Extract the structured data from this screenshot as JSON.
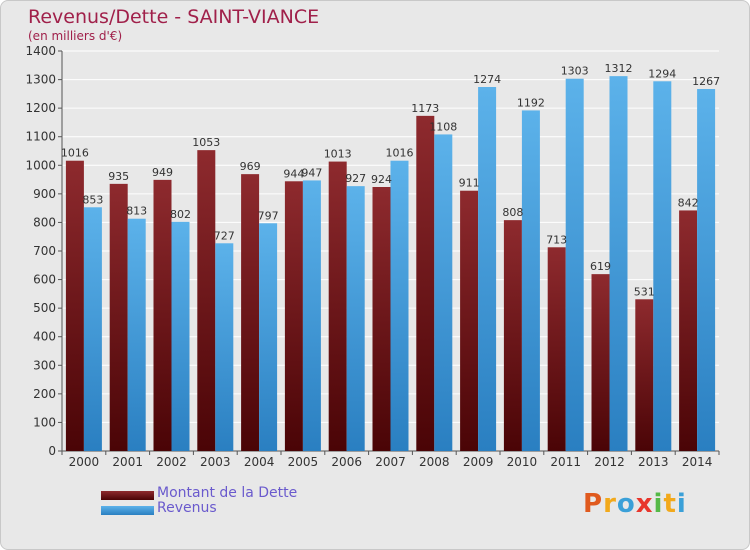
{
  "chart_data": {
    "type": "bar",
    "title": "Revenus/Dette - SAINT-VIANCE",
    "subtitle": "(en milliers d'€)",
    "categories": [
      "2000",
      "2001",
      "2002",
      "2003",
      "2004",
      "2005",
      "2006",
      "2007",
      "2008",
      "2009",
      "2010",
      "2011",
      "2012",
      "2013",
      "2014"
    ],
    "series": [
      {
        "name": "Montant de la Dette",
        "values": [
          1016,
          935,
          949,
          1053,
          969,
          944,
          1013,
          924,
          1173,
          911,
          808,
          713,
          619,
          531,
          842
        ],
        "color": "#7a1a1e"
      },
      {
        "name": "Revenus",
        "values": [
          853,
          813,
          802,
          727,
          797,
          947,
          927,
          1016,
          1108,
          1274,
          1192,
          1303,
          1312,
          1294,
          1267
        ],
        "color": "#4aa3e0"
      }
    ],
    "ylim": [
      0,
      1400
    ],
    "yticks": [
      0,
      100,
      200,
      300,
      400,
      500,
      600,
      700,
      800,
      900,
      1000,
      1100,
      1200,
      1300,
      1400
    ],
    "grid": true,
    "legend": "bottom-left"
  },
  "logo": {
    "text": "Proxiti",
    "colors": [
      "#e05a1e",
      "#f2a91b",
      "#3aa0d8",
      "#e8362c",
      "#55b947",
      "#f2a91b",
      "#3aa0d8"
    ]
  }
}
